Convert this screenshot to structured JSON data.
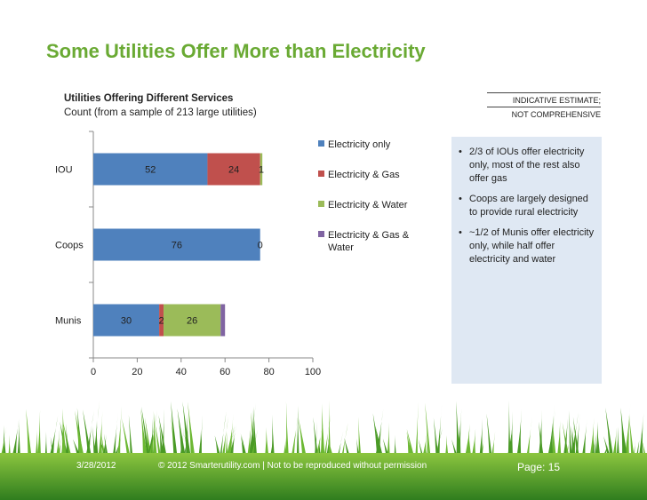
{
  "title": "Some Utilities Offer More than Electricity",
  "subtitle": {
    "line1": "Utilities Offering Different Services",
    "line2": "Count (from a sample of 213 large utilities)"
  },
  "indicative": {
    "line1": "INDICATIVE ESTIMATE;",
    "line2": "NOT COMPREHENSIVE"
  },
  "chart_data": {
    "type": "bar",
    "orientation": "horizontal",
    "stacked": true,
    "categories": [
      "IOU",
      "Coops",
      "Munis"
    ],
    "series": [
      {
        "name": "Electricity only",
        "values": [
          52,
          76,
          30
        ],
        "labels": [
          "52",
          "76",
          "30"
        ],
        "color": "#4f81bd"
      },
      {
        "name": "Electricity & Gas",
        "values": [
          24,
          0,
          2
        ],
        "labels": [
          "24",
          "0",
          "2"
        ],
        "color": "#c0504d"
      },
      {
        "name": "Electricity & Water",
        "values": [
          1,
          0,
          26
        ],
        "labels": [
          "1",
          "",
          "26"
        ],
        "color": "#9bbb59"
      },
      {
        "name": "Electricity & Gas & Water",
        "values": [
          0,
          0,
          2
        ],
        "labels": [
          "",
          "",
          ""
        ],
        "color": "#8064a2"
      }
    ],
    "xlim": [
      0,
      100
    ],
    "xticks": [
      "0",
      "20",
      "40",
      "60",
      "80",
      "100"
    ],
    "legend_position": "right",
    "grid": false
  },
  "legend_lines": [
    [
      "Electricity only"
    ],
    [
      "Electricity & Gas"
    ],
    [
      "Electricity & Water"
    ],
    [
      "Electricity & Gas &",
      "Water"
    ]
  ],
  "bullets": [
    "2/3 of IOUs offer electricity only, most of the rest also offer gas",
    "Coops are largely designed to provide rural electricity",
    "~1/2 of Munis offer electricity only, while half offer electricity and water"
  ],
  "footer": {
    "date": "3/28/2012",
    "copyright": "© 2012 Smarterutility.com | Not to be reproduced without permission",
    "page": "Page: 15"
  },
  "colors": {
    "title": "#6aaa34",
    "side_box": "#dfe8f3",
    "grass": "#4c9a2a"
  }
}
